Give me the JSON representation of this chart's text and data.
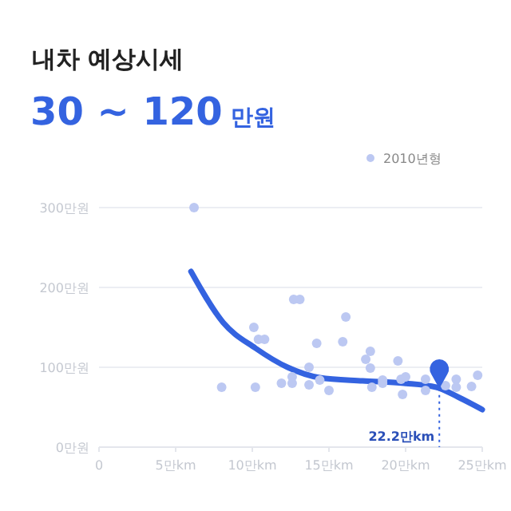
{
  "chart_data": {
    "type": "scatter",
    "title": "내차 예상시세",
    "subtitle": "30 ~ 120 만원",
    "xlim": [
      0,
      25
    ],
    "ylim": [
      0,
      300
    ],
    "xticks": [
      0,
      {
        "value": 5,
        "label": "5만km"
      },
      {
        "value": 10,
        "label": "10만km"
      },
      {
        "value": 15,
        "label": "15만km"
      },
      {
        "value": 20,
        "label": "20만km"
      },
      {
        "value": 25,
        "label": "25만km"
      }
    ],
    "yticks": [
      {
        "value": 0,
        "label": "0만원"
      },
      {
        "value": 100,
        "label": "100만원"
      },
      {
        "value": 200,
        "label": "200만원"
      },
      {
        "value": 300,
        "label": "300만원"
      }
    ],
    "grid": "y",
    "legend": "top right",
    "marker": "circle",
    "series": [
      {
        "name": "2010년형",
        "color": "#bcc8f2",
        "x": [
          6.2,
          8.0,
          10.1,
          10.4,
          10.8,
          10.2,
          11.9,
          12.6,
          12.6,
          12.7,
          13.1,
          13.7,
          13.7,
          14.2,
          14.4,
          15.0,
          15.9,
          16.1,
          17.4,
          17.7,
          17.7,
          17.8,
          18.5,
          18.5,
          19.5,
          19.8,
          19.7,
          20.0,
          21.3,
          21.3,
          22.6,
          23.3,
          23.3,
          24.3,
          24.7
        ],
        "values": [
          300,
          75,
          150,
          135,
          135,
          75,
          80,
          80,
          88,
          185,
          185,
          100,
          78,
          130,
          84,
          71,
          132,
          163,
          110,
          120,
          99,
          75,
          84,
          80,
          108,
          66,
          85,
          88,
          85,
          71,
          77,
          85,
          75,
          76,
          90
        ]
      },
      {
        "color": "#3463e0",
        "type": "line",
        "line_style": "solid",
        "marker": "none",
        "x": [
          6.0,
          8.1,
          10.2,
          12.3,
          14.4,
          17.2,
          19.9,
          22.0,
          23.4,
          25.0
        ],
        "values": [
          220,
          156,
          124,
          100,
          87,
          83,
          80,
          75,
          63,
          47
        ]
      }
    ],
    "ref_lines": [
      {
        "axis": "x",
        "value": 22.2,
        "label": "22.2만km",
        "color": "#3463e0",
        "line_style": "dotted"
      }
    ]
  }
}
